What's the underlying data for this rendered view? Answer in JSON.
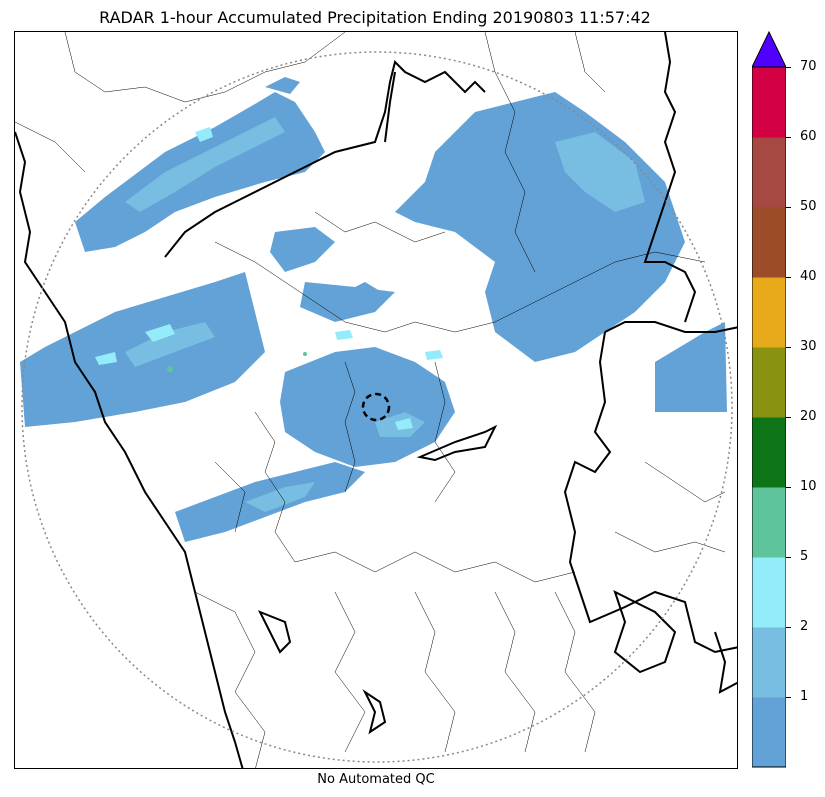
{
  "title": "RADAR 1-hour Accumulated Precipitation Ending 20190803 11:57:42",
  "footer": "No Automated QC",
  "colorbar": {
    "ticks": [
      "1",
      "2",
      "5",
      "10",
      "20",
      "30",
      "40",
      "50",
      "60",
      "70"
    ],
    "bands": [
      {
        "color": "#62a2d6"
      },
      {
        "color": "#78bde2"
      },
      {
        "color": "#94ecfa"
      },
      {
        "color": "#5dc49b"
      },
      {
        "color": "#0e7418"
      },
      {
        "color": "#899311"
      },
      {
        "color": "#e6aa1a"
      },
      {
        "color": "#9c4c28"
      },
      {
        "color": "#a54942"
      },
      {
        "color": "#d30043"
      }
    ],
    "over_color": "#5000ff"
  },
  "colors": {
    "light_rain": "#62a2d6",
    "moderate_rain": "#78bde2",
    "heavier_rain": "#94ecfa",
    "heavy_rain": "#5dc49b",
    "range_ring": "#888888",
    "border": "#000000"
  }
}
